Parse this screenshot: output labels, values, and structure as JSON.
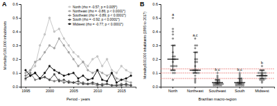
{
  "chart_data": [
    {
      "type": "line",
      "panel": "A",
      "x_label": "Period - years",
      "y_label": "Mortality/100,000 inhabitants",
      "x": [
        1995,
        1996,
        1997,
        1998,
        1999,
        2000,
        2001,
        2002,
        2003,
        2004,
        2005,
        2006,
        2007,
        2008,
        2009,
        2010,
        2011,
        2012,
        2013,
        2014,
        2015,
        2016,
        2017
      ],
      "xlim": [
        1994,
        2018
      ],
      "xticks": [
        1995,
        2000,
        2005,
        2010,
        2015
      ],
      "ylim": [
        0,
        0.6
      ],
      "yticks": [
        {
          "value": 0,
          "label": "0.0"
        },
        0.1,
        0.2,
        0.3,
        0.4,
        0.5,
        0.6
      ],
      "grid": false,
      "legend": "upper right",
      "marker": "circle",
      "line_style": "solid",
      "series": [
        {
          "name": "North (rho = -0.57; p = 0.005*)",
          "color": "#c8c8c8",
          "values": [
            0.05,
            0.12,
            0.15,
            0.3,
            0.38,
            0.5,
            0.4,
            0.42,
            0.35,
            0.3,
            0.25,
            0.22,
            0.18,
            0.15,
            0.2,
            0.22,
            0.15,
            0.2,
            0.12,
            0.1,
            0.15,
            0.12,
            0.1
          ]
        },
        {
          "name": "Northeast (rho = -0.86; p < 0.0001*)",
          "color": "#a6a6a6",
          "values": [
            0.1,
            0.12,
            0.18,
            0.2,
            0.25,
            0.3,
            0.28,
            0.35,
            0.3,
            0.25,
            0.2,
            0.15,
            0.18,
            0.12,
            0.1,
            0.12,
            0.1,
            0.08,
            0.1,
            0.06,
            0.05,
            0.04,
            0.03
          ]
        },
        {
          "name": "Southeast (rho = -0.89; p < 0.0001*)",
          "color": "#7f7f7f",
          "values": [
            0.08,
            0.1,
            0.05,
            0.06,
            0.07,
            0.05,
            0.04,
            0.05,
            0.03,
            0.04,
            0.03,
            0.02,
            0.03,
            0.02,
            0.02,
            0.01,
            0.02,
            0.02,
            0.01,
            0.01,
            0.02,
            0.01,
            0.01
          ]
        },
        {
          "name": "South (rho = -0.92; p < 0.0001*)",
          "color": "#4d4d4d",
          "values": [
            0.06,
            0.08,
            0.1,
            0.06,
            0.07,
            0.05,
            0.09,
            0.04,
            0.05,
            0.03,
            0.03,
            0.04,
            0.02,
            0.02,
            0.03,
            0.02,
            0.01,
            0.02,
            0.01,
            0.01,
            0.01,
            0.02,
            0.01
          ]
        },
        {
          "name": "Midwest (rho = -0.77; p < 0.0001*)",
          "color": "#111111",
          "values": [
            0.12,
            0.08,
            0.1,
            0.06,
            0.1,
            0.15,
            0.12,
            0.1,
            0.08,
            0.09,
            0.1,
            0.06,
            0.08,
            0.05,
            0.06,
            0.12,
            0.05,
            0.04,
            0.1,
            0.03,
            0.05,
            0.06,
            0.08
          ]
        }
      ]
    },
    {
      "type": "dot",
      "panel": "B",
      "x_label": "Brazilian macro-region",
      "y_label": "Mortality/100,000 inhabitants (1995 to 2017)",
      "categories": [
        "North",
        "Northeast",
        "Southeast",
        "South",
        "Midwest"
      ],
      "ylim": [
        0,
        0.6
      ],
      "yticks": [
        {
          "value": 0,
          "label": "0.0"
        },
        0.1,
        0.2,
        0.3,
        0.4,
        0.5,
        0.6
      ],
      "grid": false,
      "color": "#9a9a9a",
      "marker": "circle",
      "reference_lines": [
        0.06,
        0.1,
        0.13
      ],
      "groups": [
        {
          "letter": "a",
          "median": 0.2,
          "q1": 0.12,
          "q3": 0.3,
          "values": [
            0.05,
            0.12,
            0.15,
            0.3,
            0.38,
            0.5,
            0.4,
            0.42,
            0.35,
            0.3,
            0.25,
            0.22,
            0.18,
            0.15,
            0.2,
            0.22,
            0.15,
            0.2,
            0.12,
            0.1,
            0.15,
            0.12,
            0.1
          ]
        },
        {
          "letter": "a,c",
          "median": 0.12,
          "q1": 0.1,
          "q3": 0.25,
          "values": [
            0.1,
            0.12,
            0.18,
            0.2,
            0.25,
            0.3,
            0.28,
            0.35,
            0.3,
            0.25,
            0.2,
            0.15,
            0.18,
            0.12,
            0.1,
            0.12,
            0.1,
            0.08,
            0.1,
            0.06,
            0.05,
            0.04,
            0.03
          ]
        },
        {
          "letter": "b,c",
          "median": 0.03,
          "q1": 0.02,
          "q3": 0.05,
          "values": [
            0.08,
            0.1,
            0.05,
            0.06,
            0.07,
            0.05,
            0.04,
            0.05,
            0.03,
            0.04,
            0.03,
            0.02,
            0.03,
            0.02,
            0.02,
            0.01,
            0.02,
            0.02,
            0.01,
            0.01,
            0.02,
            0.01,
            0.01
          ]
        },
        {
          "letter": "b,c",
          "median": 0.03,
          "q1": 0.02,
          "q3": 0.06,
          "values": [
            0.06,
            0.08,
            0.1,
            0.06,
            0.07,
            0.05,
            0.09,
            0.04,
            0.05,
            0.03,
            0.03,
            0.04,
            0.02,
            0.02,
            0.03,
            0.02,
            0.01,
            0.02,
            0.01,
            0.01,
            0.01,
            0.02,
            0.01
          ]
        },
        {
          "letter": "b",
          "median": 0.08,
          "q1": 0.06,
          "q3": 0.12,
          "values": [
            0.12,
            0.08,
            0.1,
            0.06,
            0.1,
            0.15,
            0.12,
            0.1,
            0.08,
            0.09,
            0.1,
            0.06,
            0.08,
            0.05,
            0.06,
            0.12,
            0.05,
            0.04,
            0.1,
            0.03,
            0.05,
            0.06,
            0.08
          ]
        }
      ]
    }
  ]
}
